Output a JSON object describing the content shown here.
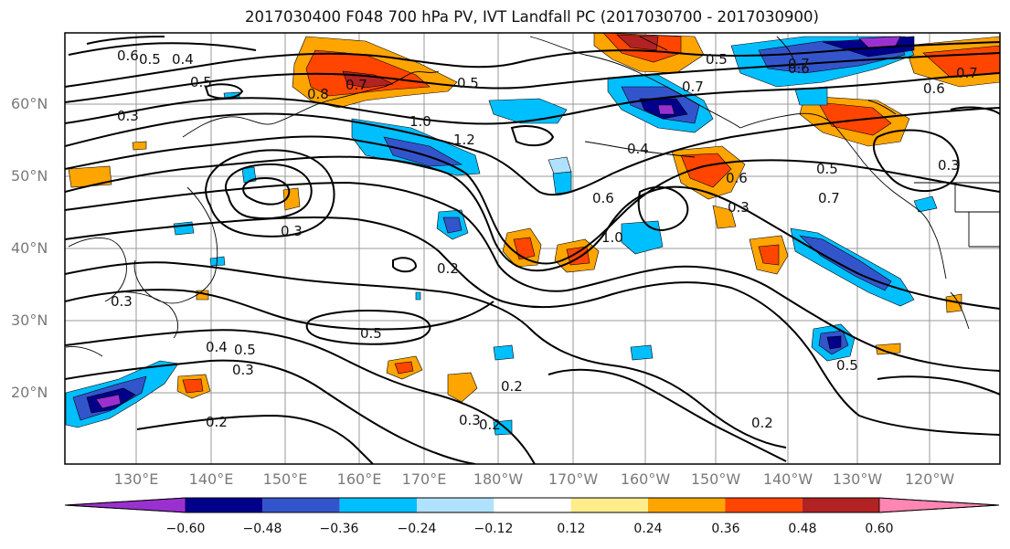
{
  "title": "2017030400 F048 700 hPa PV, IVT Landfall PC (2017030700 - 2017030900)",
  "map": {
    "lat_labels": [
      "60°N",
      "50°N",
      "40°N",
      "30°N",
      "20°N"
    ],
    "lon_labels": [
      "130°E",
      "140°E",
      "150°E",
      "160°E",
      "170°E",
      "180°W",
      "170°W",
      "160°W",
      "150°W",
      "140°W",
      "130°W",
      "120°W"
    ],
    "contour_labels": [
      "0.6",
      "0.5",
      "0.4",
      "0.5",
      "0.3",
      "0.8",
      "0.7",
      "1.0",
      "0.5",
      "1.2",
      "0.5",
      "0.7",
      "0.6",
      "0.7",
      "0.4",
      "0.6",
      "0.5",
      "0.7",
      "0.3",
      "0.3",
      "0.2",
      "0.5",
      "0.5",
      "0.3",
      "0.4",
      "0.2",
      "0.2",
      "0.3",
      "0.2",
      "0.2",
      "1.0",
      "0.6",
      "0.3",
      "0.5",
      "0.6",
      "0.3",
      "0.7"
    ]
  },
  "colorbar": {
    "ticks": [
      "−0.60",
      "−0.48",
      "−0.36",
      "−0.24",
      "−0.12",
      "0.12",
      "0.24",
      "0.36",
      "0.48",
      "0.60"
    ],
    "colors": [
      "#9b30d0",
      "#00008b",
      "#3355cc",
      "#00bfff",
      "#b0e2ff",
      "#ffffff",
      "#ffec8b",
      "#ffa500",
      "#ff4500",
      "#b22222",
      "#ff85b2"
    ]
  }
}
